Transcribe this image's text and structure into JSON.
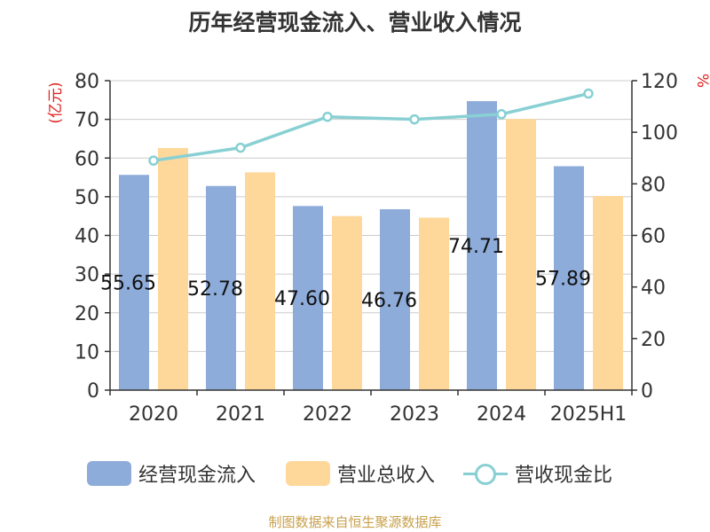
{
  "title": "历年经营现金流入、营业收入情况",
  "source": "制图数据来自恒生聚源数据库",
  "colors": {
    "cash_inflow": "#8eacda",
    "revenue": "#fed89b",
    "ratio": "#88d0d3",
    "left_unit": "#e02020",
    "axis": "#333333",
    "grid": "#cccccc"
  },
  "chart_data": {
    "type": "bar",
    "categories": [
      "2020",
      "2021",
      "2022",
      "2023",
      "2024",
      "2025H1"
    ],
    "series": [
      {
        "name": "经营现金流入",
        "axis": "left",
        "type": "bar",
        "values": [
          55.65,
          52.78,
          47.6,
          46.76,
          74.71,
          57.89
        ]
      },
      {
        "name": "营业总收入",
        "axis": "left",
        "type": "bar",
        "values": [
          62.6,
          56.3,
          45.0,
          44.6,
          70.1,
          50.2
        ]
      },
      {
        "name": "营收现金比",
        "axis": "right",
        "type": "line",
        "values": [
          89,
          94,
          106,
          105,
          107,
          115
        ]
      }
    ],
    "data_labels": [
      "55.65",
      "52.78",
      "47.60",
      "46.76",
      "74.71",
      "57.89"
    ],
    "y_left": {
      "label": "(亿元)",
      "range": [
        0,
        80
      ],
      "ticks": [
        0,
        10,
        20,
        30,
        40,
        50,
        60,
        70,
        80
      ]
    },
    "y_right": {
      "label": "%",
      "range": [
        0,
        120
      ],
      "ticks": [
        0,
        20,
        40,
        60,
        80,
        100,
        120
      ]
    },
    "grid": true,
    "legend_position": "bottom"
  }
}
